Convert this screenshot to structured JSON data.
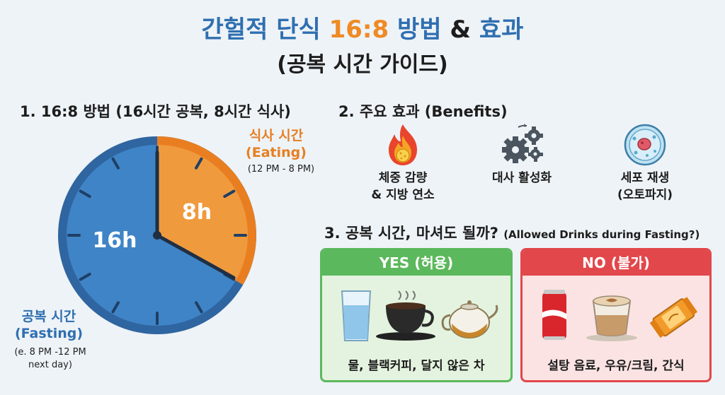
{
  "title": {
    "part1": "간헐적 단식 ",
    "part2": "16:8",
    "part3": " 방법 ",
    "part4": "&",
    "part5": " 효과",
    "subtitle": "(공복 시간 가이드)"
  },
  "section1": {
    "heading": "1. 16:8 방법 (16시간 공복, 8시간 식사)",
    "eating_label_line1": "식사 시간",
    "eating_label_line2": "(Eating)",
    "eating_time": "(12 PM - 8 PM)",
    "fasting_label_line1": "공복 시간",
    "fasting_label_line2": "(Fasting)",
    "fasting_time_line1": "(e. 8 PM -12 PM",
    "fasting_time_line2": "next day)",
    "fasting_hours": "16h",
    "eating_hours": "8h",
    "colors": {
      "fasting": "#3f84c6",
      "eating": "#f09a3e",
      "rim": "#2f65a0",
      "eating_rim": "#e97e20"
    }
  },
  "section2": {
    "heading": "2. 주요 효과 (Benefits)",
    "benefits": [
      {
        "icon": "fire-icon",
        "line1": "체중 감량",
        "line2": "& 지방 연소"
      },
      {
        "icon": "gears-icon",
        "line1": "대사 활성화",
        "line2": ""
      },
      {
        "icon": "cell-icon",
        "line1": "세포 재생",
        "line2": "(오토파지)"
      }
    ]
  },
  "section3": {
    "heading": "3. 공복 시간, 마셔도 될까?",
    "heading_sub": "(Allowed Drinks during Fasting?)",
    "yes": {
      "title": "YES (허용)",
      "items": "물, 블랙커피, 달지 않은 차",
      "icons": [
        "water-glass-icon",
        "black-coffee-icon",
        "teapot-icon"
      ],
      "color": "#5cb85c"
    },
    "no": {
      "title": "NO (불가)",
      "items": "설탕 음료, 우유/크림, 간식",
      "icons": [
        "soda-can-icon",
        "latte-icon",
        "snack-bar-icon"
      ],
      "color": "#e2474b"
    }
  }
}
